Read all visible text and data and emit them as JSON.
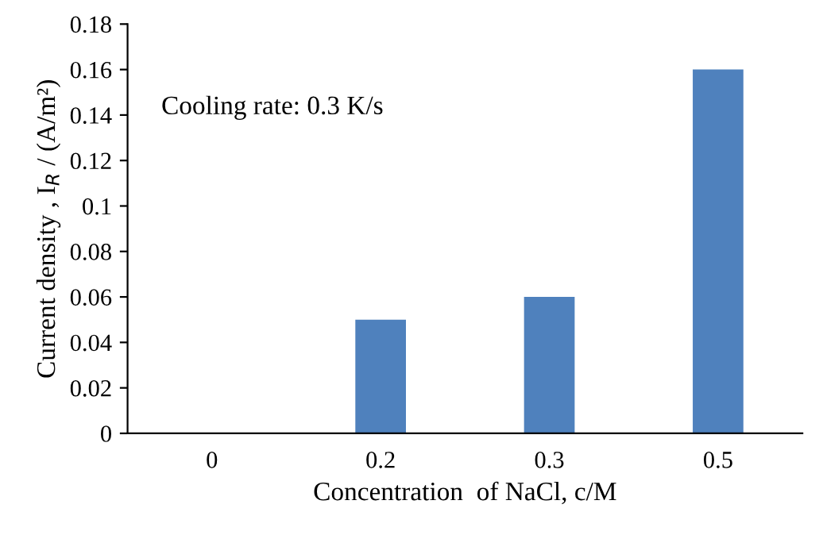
{
  "chart_data": {
    "type": "bar",
    "xlabel": "Concentration  of NaCl, c/M",
    "ylabel": "Current density , I$_{R}$ / (A/m²)",
    "categories": [
      "0",
      "0.2",
      "0.3",
      "0.5"
    ],
    "values": [
      0,
      0.05,
      0.06,
      0.16
    ],
    "color": "#4f81bd",
    "ylim": [
      0,
      0.18
    ],
    "yticks": [
      0,
      0.02,
      0.04,
      0.06,
      0.08,
      0.1,
      0.12,
      0.14,
      0.16,
      0.18
    ],
    "annotations": [
      "Cooling rate: 0.3 K/s"
    ],
    "grid": false,
    "legend": false
  }
}
